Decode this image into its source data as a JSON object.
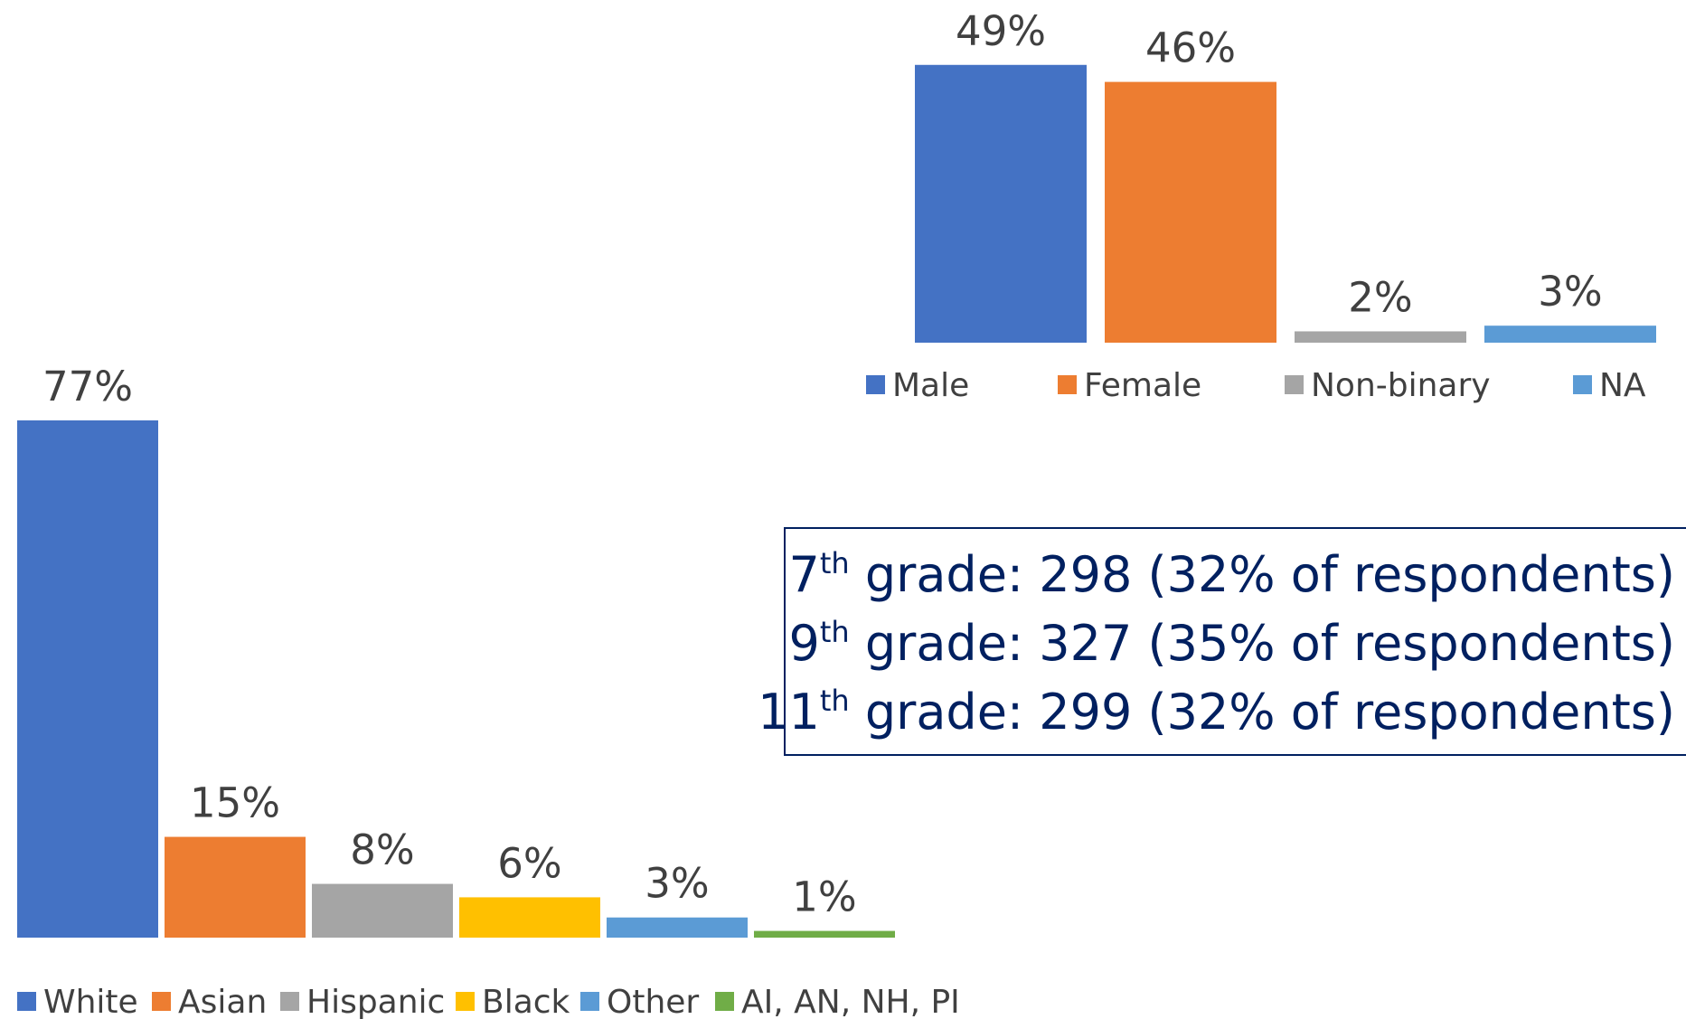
{
  "chart_data": [
    {
      "type": "bar",
      "categories": [
        "Male",
        "Female",
        "Non-binary",
        "NA"
      ],
      "values": [
        49,
        46,
        2,
        3
      ],
      "value_labels": [
        "49%",
        "46%",
        "2%",
        "3%"
      ],
      "colors": [
        "#4472c4",
        "#ed7d31",
        "#a5a5a5",
        "#5b9bd5"
      ]
    },
    {
      "type": "bar",
      "categories": [
        "White",
        "Asian",
        "Hispanic",
        "Black",
        "Other",
        "AI, AN, NH, PI"
      ],
      "values": [
        77,
        15,
        8,
        6,
        3,
        1
      ],
      "value_labels": [
        "77%",
        "15%",
        "8%",
        "6%",
        "3%",
        "1%"
      ],
      "colors": [
        "#4472c4",
        "#ed7d31",
        "#a5a5a5",
        "#ffc000",
        "#5b9bd5",
        "#70ad47"
      ]
    }
  ],
  "grade_box": {
    "lines": [
      {
        "grade": "7",
        "suffix": "th",
        "text": " grade: 298 (32% of respondents)"
      },
      {
        "grade": "9",
        "suffix": "th",
        "text": " grade: 327 (35% of respondents)"
      },
      {
        "grade": "11",
        "suffix": "th",
        "text": " grade: 299 (32% of respondents)"
      }
    ]
  }
}
